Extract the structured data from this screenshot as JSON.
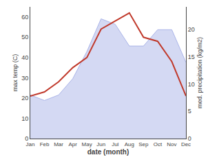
{
  "chart_data": {
    "type": "line",
    "x_label": "date (month)",
    "y_label": "max temp (C)",
    "y2_label": "med. precipitation (kg/m2)",
    "categories": [
      "Jan",
      "Feb",
      "Mar",
      "Apr",
      "May",
      "Jun",
      "Jul",
      "Aug",
      "Sep",
      "Oct",
      "Nov",
      "Dec"
    ],
    "series": [
      {
        "type": "area",
        "axis": "y2",
        "color": "#aab4e8",
        "values": [
          8,
          7,
          8,
          11,
          16,
          22,
          21,
          17,
          17,
          20,
          20,
          14
        ]
      },
      {
        "type": "line",
        "color": "#c0392b",
        "values": [
          21,
          23,
          28,
          35,
          40,
          54,
          58,
          62,
          50,
          48,
          38,
          21
        ]
      }
    ],
    "ylim": [
      0,
      65
    ],
    "yticks": [
      0,
      10,
      20,
      30,
      40,
      50,
      60
    ],
    "y2lim": [
      0,
      24.2
    ],
    "y2ticks": [
      0,
      5,
      10,
      15,
      20
    ],
    "grid": false
  }
}
